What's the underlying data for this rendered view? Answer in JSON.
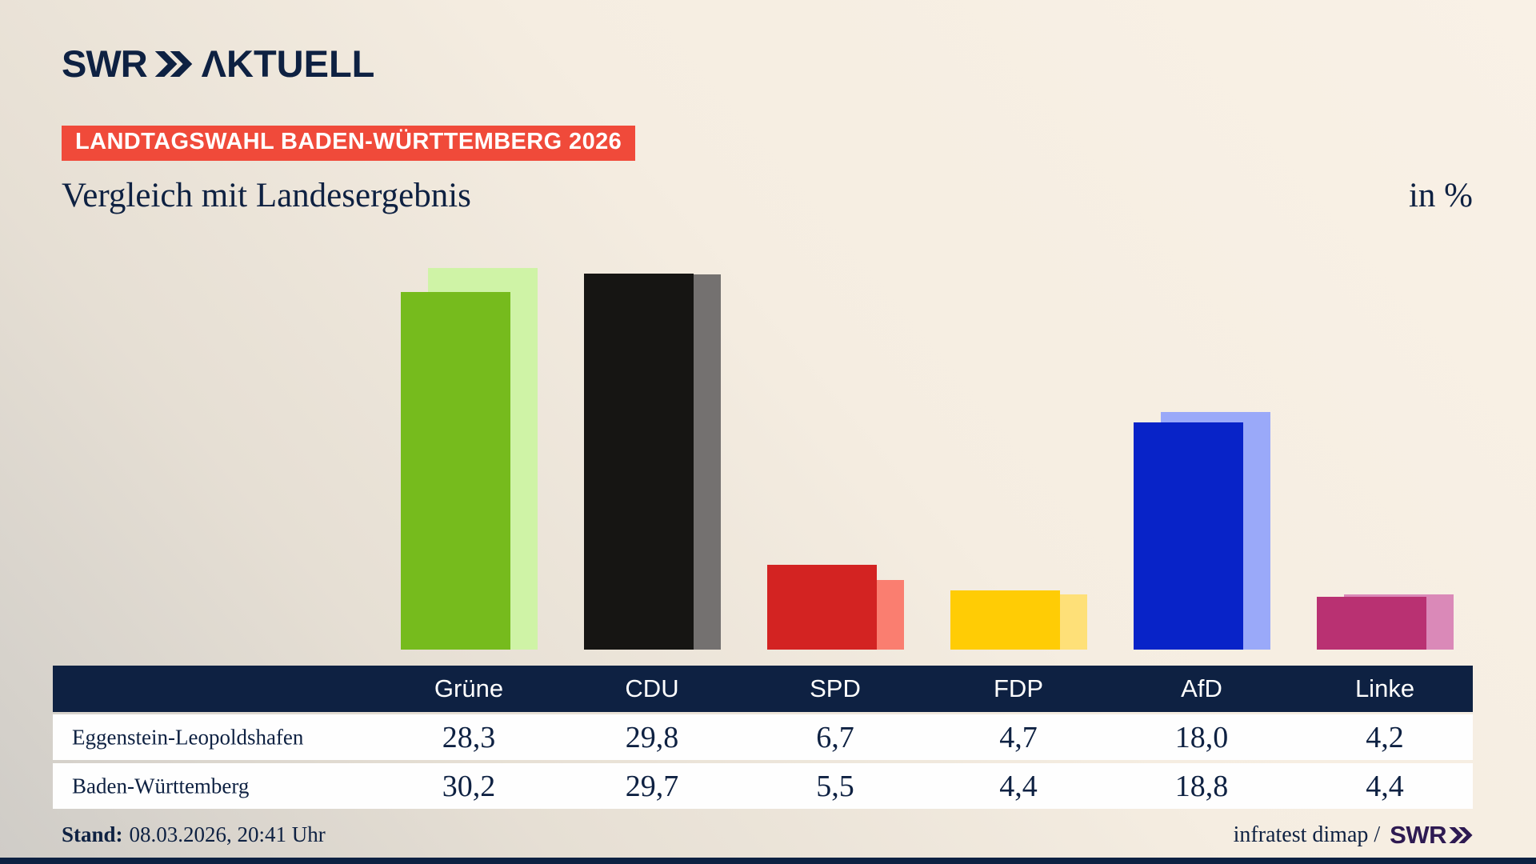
{
  "brand": {
    "logo_text": "SWR",
    "logo_suffix": "ΛKTUELL"
  },
  "banner": {
    "text": "LANDTAGSWAHL BADEN-WÜRTTEMBERG 2026",
    "background": "#f04a3a"
  },
  "title": "Vergleich mit Landesergebnis",
  "unit_label": "in %",
  "footer": {
    "stand_label": "Stand:",
    "stand_value": "08.03.2026, 20:41 Uhr",
    "credit": "infratest dimap /",
    "brand": "SWR"
  },
  "colors": {
    "navy": "#0e2142",
    "banner_red": "#f04a3a",
    "footer_brand_purple": "#2e1a52",
    "row_background": "#fefefe"
  },
  "chart_data": {
    "type": "bar",
    "title": "Vergleich mit Landesergebnis",
    "unit": "in %",
    "categories": [
      "Grüne",
      "CDU",
      "SPD",
      "FDP",
      "AfD",
      "Linke"
    ],
    "series": [
      {
        "name": "Eggenstein-Leopoldshafen",
        "values": [
          28.3,
          29.8,
          6.7,
          4.7,
          18.0,
          4.2
        ],
        "colors": [
          "#76bb1d",
          "#161513",
          "#d32322",
          "#ffcc05",
          "#0823c8",
          "#b93172"
        ]
      },
      {
        "name": "Baden-Württemberg",
        "values": [
          30.2,
          29.7,
          5.5,
          4.4,
          18.8,
          4.4
        ],
        "colors": [
          "#cff3a6",
          "#747170",
          "#fa7e70",
          "#fee078",
          "#9aa9f9",
          "#da89b8"
        ]
      }
    ],
    "ylim": [
      0,
      30.2
    ],
    "value_format": "decimal-comma",
    "legend_position": "table-rows",
    "grid": false
  }
}
